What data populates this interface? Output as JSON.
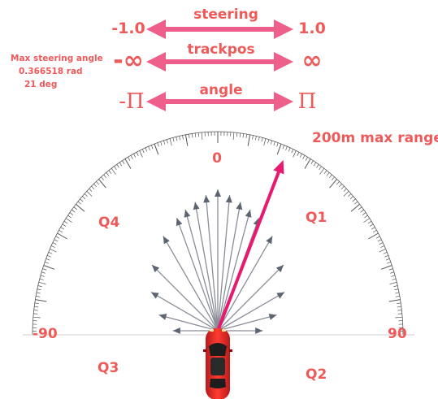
{
  "arrows": {
    "steering": {
      "label": "steering",
      "min": "-1.0",
      "max": "1.0"
    },
    "trackpos": {
      "label": "trackpos",
      "min": "-∞",
      "max": "∞"
    },
    "angle": {
      "label": "angle",
      "min": "-Π",
      "max": "Π"
    }
  },
  "info": {
    "title": "Max steering angle",
    "radians": "0.366518 rad",
    "degrees": "21 deg"
  },
  "range_label": "200m max range",
  "protractor": {
    "zero_label": "0",
    "left_label": "-90",
    "right_label": "90",
    "min_deg": -90,
    "max_deg": 90
  },
  "quadrants": {
    "q1": "Q1",
    "q2": "Q2",
    "q3": "Q3",
    "q4": "Q4"
  },
  "sensor_rays_deg": [
    -90,
    -75,
    -60,
    -45,
    -30,
    -20,
    -15,
    -10,
    -5,
    0,
    5,
    10,
    15,
    20,
    30,
    45,
    60,
    75,
    90
  ],
  "heading_deg": 21,
  "colors": {
    "accent": "#ee5a5a",
    "arrow": "#ef5f8c",
    "heading": "#e8196e",
    "car": "#e53935",
    "ray": "#8a8d98",
    "ray_head": "#5d6472",
    "scale": "#555555"
  }
}
